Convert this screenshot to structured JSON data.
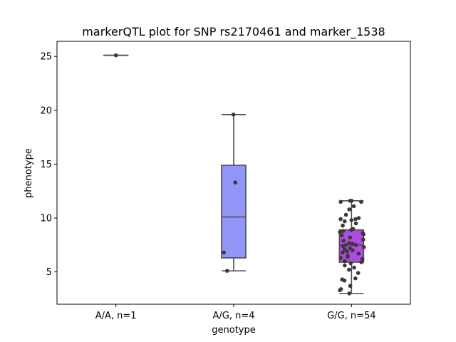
{
  "chart_data": {
    "type": "box",
    "title": "markerQTL plot for SNP rs2170461 and marker_1538",
    "xlabel": "genotype",
    "ylabel": "phenotype",
    "ylim": [
      2.0,
      26.4
    ],
    "yticks": [
      5,
      10,
      15,
      20,
      25
    ],
    "categories": [
      "A/A, n=1",
      "A/G, n=4",
      "G/G, n=54"
    ],
    "boxes": [
      {
        "category": "A/A, n=1",
        "color": "#a4b3f5",
        "whisker_low": 25.1,
        "q1": 25.1,
        "median": 25.1,
        "q3": 25.1,
        "whisker_high": 25.1
      },
      {
        "category": "A/G, n=4",
        "color": "#9295f5",
        "whisker_low": 5.1,
        "q1": 6.3,
        "median": 10.1,
        "q3": 14.9,
        "whisker_high": 19.6
      },
      {
        "category": "G/G, n=54",
        "color": "#b04be0",
        "whisker_low": 3.0,
        "q1": 5.9,
        "median": 7.5,
        "q3": 8.9,
        "whisker_high": 11.6
      }
    ],
    "points": [
      [
        25.1
      ],
      [
        19.6,
        13.3,
        6.8,
        5.1
      ],
      [
        11.6,
        11.6,
        11.5,
        11.5,
        11.1,
        10.8,
        10.3,
        10.0,
        9.9,
        9.9,
        9.8,
        9.7,
        9.5,
        9.3,
        9.0,
        8.9,
        8.8,
        8.7,
        8.6,
        8.5,
        8.4,
        8.2,
        8.0,
        7.9,
        7.7,
        7.6,
        7.5,
        7.5,
        7.4,
        7.3,
        7.2,
        7.1,
        7.0,
        6.9,
        6.8,
        6.7,
        6.5,
        6.4,
        6.3,
        6.2,
        6.0,
        5.9,
        5.8,
        5.6,
        5.4,
        5.2,
        4.9,
        4.4,
        4.3,
        4.2,
        3.7,
        3.4,
        3.3,
        3.0
      ]
    ]
  }
}
